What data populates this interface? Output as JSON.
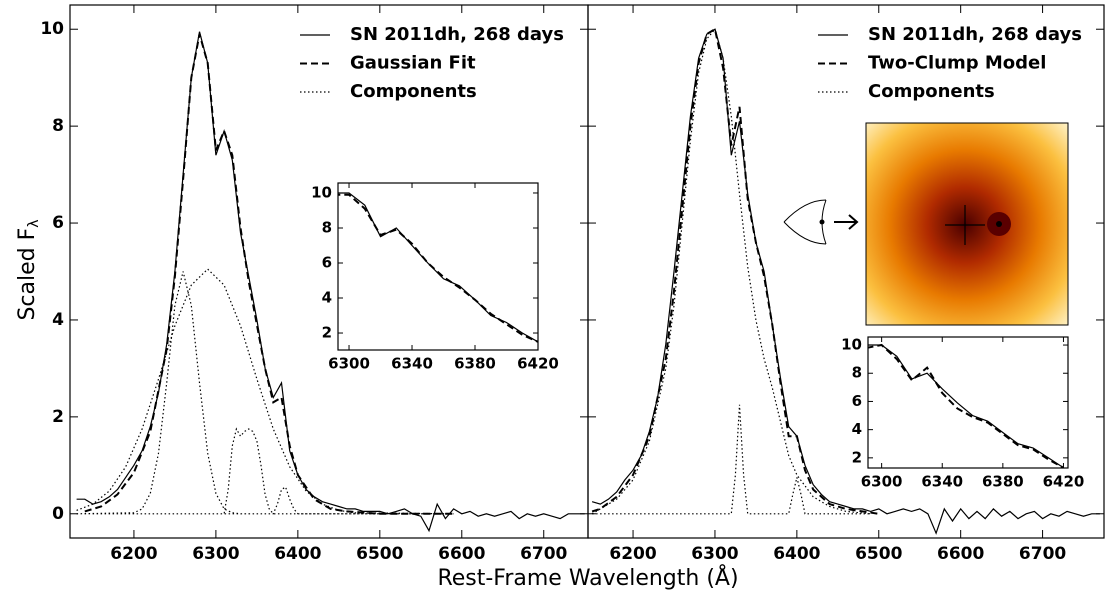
{
  "chart_data": [
    {
      "type": "line",
      "ylabel": "Scaled F",
      "ylabel_sub": "λ",
      "xlabel": "Rest-Frame Wavelength (Å)",
      "xlim": [
        6122,
        6754
      ],
      "ylim": [
        -0.5,
        10.5
      ],
      "xticks": [
        6200,
        6300,
        6400,
        6500,
        6600,
        6700
      ],
      "yticks": [
        0,
        2,
        4,
        6,
        8,
        10
      ],
      "legend": "upper right",
      "series": [
        {
          "name": "SN 2011dh, 268 days",
          "color": "#000000",
          "linestyle": "solid",
          "x": [
            6130,
            6140,
            6150,
            6160,
            6170,
            6180,
            6190,
            6200,
            6210,
            6220,
            6230,
            6240,
            6250,
            6260,
            6270,
            6280,
            6290,
            6300,
            6310,
            6320,
            6330,
            6340,
            6350,
            6360,
            6370,
            6380,
            6390,
            6400,
            6410,
            6420,
            6430,
            6440,
            6450,
            6460,
            6470,
            6480,
            6490,
            6500,
            6510,
            6520,
            6530,
            6540,
            6550,
            6560,
            6570,
            6580,
            6590,
            6600,
            6610,
            6620,
            6630,
            6640,
            6650,
            6660,
            6670,
            6680,
            6690,
            6700,
            6710,
            6720,
            6730,
            6740,
            6750
          ],
          "values": [
            0.3,
            0.3,
            0.2,
            0.25,
            0.35,
            0.5,
            0.75,
            1.0,
            1.3,
            1.8,
            2.5,
            3.5,
            5.0,
            7.0,
            9.0,
            9.95,
            9.3,
            7.4,
            7.9,
            7.3,
            5.8,
            4.9,
            4.0,
            3.0,
            2.4,
            2.7,
            1.3,
            0.8,
            0.5,
            0.35,
            0.25,
            0.2,
            0.15,
            0.1,
            0.1,
            0.05,
            0.05,
            0.05,
            0.0,
            0.05,
            0.1,
            0.0,
            -0.05,
            -0.35,
            0.2,
            -0.1,
            0.1,
            0.0,
            0.05,
            -0.05,
            0.0,
            -0.05,
            0.0,
            0.05,
            -0.1,
            0.0,
            -0.05,
            0.0,
            -0.05,
            -0.1,
            0.0,
            0.0,
            0.0
          ]
        },
        {
          "name": "Gaussian Fit",
          "color": "#000000",
          "linestyle": "dashed",
          "x": [
            6140,
            6160,
            6180,
            6200,
            6220,
            6240,
            6250,
            6260,
            6270,
            6280,
            6290,
            6300,
            6310,
            6320,
            6330,
            6340,
            6350,
            6360,
            6370,
            6380,
            6390,
            6400,
            6420,
            6440,
            6460,
            6500,
            6590
          ],
          "values": [
            0.05,
            0.15,
            0.4,
            0.85,
            1.7,
            3.4,
            4.9,
            6.9,
            9.0,
            9.9,
            9.3,
            7.5,
            7.9,
            7.4,
            5.9,
            4.8,
            3.9,
            3.0,
            2.3,
            2.4,
            1.4,
            0.8,
            0.3,
            0.1,
            0.05,
            0.0,
            0.0
          ]
        },
        {
          "name": "Components",
          "color": "#000000",
          "linestyle": "dotted",
          "x": [
            6130,
            6200,
            6210,
            6220,
            6230,
            6240,
            6250,
            6260,
            6270,
            6280,
            6290,
            6300,
            6310,
            6320,
            6330,
            6340,
            null,
            6130,
            6150,
            6170,
            6190,
            6210,
            6230,
            6250,
            6270,
            6290,
            6310,
            6330,
            6350,
            6370,
            6390,
            6410,
            6430,
            6450,
            6470,
            6590,
            null,
            6130,
            6310,
            6315,
            6320,
            6325,
            6330,
            6335,
            6340,
            6345,
            6350,
            6355,
            6360,
            6365,
            6370,
            6590,
            null,
            6130,
            6370,
            6375,
            6380,
            6385,
            6390,
            6395,
            6400,
            6590
          ],
          "values": [
            0.0,
            0.02,
            0.1,
            0.42,
            1.25,
            2.7,
            4.3,
            5.0,
            4.3,
            2.7,
            1.25,
            0.42,
            0.1,
            0.02,
            0.0,
            0.0,
            null,
            0.07,
            0.2,
            0.47,
            0.97,
            1.75,
            2.78,
            3.88,
            4.72,
            5.05,
            4.72,
            3.88,
            2.78,
            1.75,
            0.97,
            0.47,
            0.2,
            0.07,
            0.02,
            0.0,
            null,
            0.0,
            0.0,
            0.5,
            1.4,
            1.75,
            1.6,
            1.7,
            1.75,
            1.7,
            1.5,
            1.0,
            0.4,
            0.1,
            0.0,
            0.0,
            null,
            0.0,
            0.0,
            0.2,
            0.5,
            0.55,
            0.3,
            0.1,
            0.0,
            0.0
          ]
        }
      ]
    },
    {
      "type": "line",
      "xlim": [
        6145,
        6775
      ],
      "ylim": [
        -0.5,
        10.5
      ],
      "xticks": [
        6200,
        6300,
        6400,
        6500,
        6600,
        6700
      ],
      "yticks": [
        0,
        2,
        4,
        6,
        8,
        10
      ],
      "legend": "upper right",
      "series": [
        {
          "name": "SN 2011dh, 268 days",
          "color": "#000000",
          "linestyle": "solid",
          "x": [
            6150,
            6160,
            6170,
            6180,
            6190,
            6200,
            6210,
            6220,
            6230,
            6240,
            6250,
            6260,
            6270,
            6280,
            6290,
            6300,
            6310,
            6320,
            6330,
            6340,
            6350,
            6360,
            6370,
            6380,
            6390,
            6400,
            6410,
            6420,
            6430,
            6440,
            6450,
            6460,
            6470,
            6480,
            6490,
            6500,
            6510,
            6520,
            6530,
            6540,
            6550,
            6560,
            6570,
            6580,
            6590,
            6600,
            6610,
            6620,
            6630,
            6640,
            6650,
            6660,
            6670,
            6680,
            6690,
            6700,
            6710,
            6720,
            6730,
            6740,
            6750,
            6760,
            6770
          ],
          "values": [
            0.25,
            0.2,
            0.3,
            0.45,
            0.7,
            0.9,
            1.2,
            1.7,
            2.4,
            3.5,
            5.0,
            6.6,
            8.2,
            9.4,
            9.9,
            10.0,
            9.4,
            7.4,
            8.1,
            6.6,
            5.6,
            5.0,
            3.9,
            2.8,
            1.8,
            1.6,
            1.0,
            0.6,
            0.4,
            0.25,
            0.2,
            0.15,
            0.1,
            0.1,
            0.05,
            0.1,
            0.0,
            0.05,
            0.1,
            0.05,
            0.1,
            0.0,
            -0.4,
            0.1,
            -0.15,
            0.1,
            -0.1,
            0.05,
            -0.1,
            0.1,
            -0.05,
            0.05,
            -0.1,
            0.0,
            0.05,
            -0.1,
            0.0,
            -0.05,
            0.05,
            0.0,
            -0.05,
            0.0,
            0.0
          ]
        },
        {
          "name": "Two-Clump Model",
          "color": "#000000",
          "linestyle": "dashed",
          "x": [
            6150,
            6160,
            6180,
            6200,
            6220,
            6240,
            6250,
            6260,
            6270,
            6280,
            6290,
            6300,
            6310,
            6320,
            6330,
            6340,
            6350,
            6360,
            6370,
            6380,
            6390,
            6400,
            6410,
            6420,
            6440,
            6460,
            6480,
            6500
          ],
          "values": [
            0.05,
            0.1,
            0.35,
            0.8,
            1.6,
            3.2,
            4.6,
            6.3,
            8.0,
            9.3,
            9.9,
            10.0,
            9.2,
            7.6,
            8.4,
            6.5,
            5.6,
            4.9,
            3.9,
            2.7,
            1.6,
            1.6,
            0.9,
            0.5,
            0.2,
            0.1,
            0.05,
            0.0
          ]
        },
        {
          "name": "Components",
          "color": "#000000",
          "linestyle": "dotted",
          "x": [
            6150,
            6160,
            6180,
            6200,
            6220,
            6240,
            6250,
            6260,
            6270,
            6280,
            6290,
            6300,
            6310,
            6320,
            6330,
            6340,
            6350,
            6360,
            6370,
            6380,
            6390,
            6400,
            6420,
            6440,
            6460,
            6490,
            null,
            6150,
            6320,
            6325,
            6330,
            6335,
            6340,
            6390,
            6395,
            6400,
            6405,
            6410,
            6490
          ],
          "values": [
            0.0,
            0.1,
            0.3,
            0.7,
            1.5,
            3.0,
            4.3,
            6.0,
            7.7,
            9.1,
            9.8,
            10.0,
            9.4,
            8.2,
            6.6,
            5.1,
            4.0,
            3.2,
            2.6,
            1.9,
            1.2,
            0.8,
            0.35,
            0.15,
            0.05,
            0.0,
            null,
            0.0,
            0.0,
            0.8,
            2.25,
            0.8,
            0.0,
            0.0,
            0.4,
            0.75,
            0.4,
            0.0,
            0.0
          ]
        }
      ]
    },
    {
      "type": "line",
      "xlim": [
        6293,
        6420
      ],
      "ylim": [
        1.03,
        10.57
      ],
      "xticks": [
        6300,
        6340,
        6380,
        6420
      ],
      "yticks": [
        2,
        4,
        6,
        8,
        10
      ],
      "series": [
        {
          "color": "#000000",
          "linestyle": "solid",
          "x": [
            6290,
            6300,
            6310,
            6320,
            6330,
            6340,
            6350,
            6360,
            6370,
            6380,
            6390,
            6400,
            6410,
            6420
          ],
          "values": [
            10.0,
            10.0,
            9.3,
            7.5,
            8.0,
            7.0,
            6.0,
            5.1,
            4.7,
            3.9,
            3.0,
            2.6,
            2.0,
            1.5
          ]
        },
        {
          "color": "#000000",
          "linestyle": "dashed",
          "x": [
            6290,
            6300,
            6310,
            6320,
            6330,
            6340,
            6350,
            6360,
            6370,
            6380,
            6390,
            6400,
            6410,
            6420
          ],
          "values": [
            9.9,
            9.9,
            9.1,
            7.6,
            7.9,
            7.1,
            6.0,
            5.2,
            4.6,
            3.9,
            3.1,
            2.5,
            1.9,
            1.5
          ]
        }
      ]
    },
    {
      "type": "line",
      "xlim": [
        6291,
        6423
      ],
      "ylim": [
        1.28,
        10.57
      ],
      "xticks": [
        6300,
        6340,
        6380,
        6420
      ],
      "yticks": [
        2,
        4,
        6,
        8,
        10
      ],
      "series": [
        {
          "color": "#000000",
          "linestyle": "solid",
          "x": [
            6290,
            6300,
            6310,
            6320,
            6330,
            6340,
            6350,
            6360,
            6370,
            6380,
            6390,
            6400,
            6410,
            6420
          ],
          "values": [
            10.0,
            10.0,
            9.2,
            7.6,
            8.0,
            6.9,
            5.9,
            5.0,
            4.6,
            3.8,
            3.0,
            2.7,
            2.0,
            1.3
          ]
        },
        {
          "color": "#000000",
          "linestyle": "dashed",
          "x": [
            6290,
            6300,
            6310,
            6320,
            6330,
            6340,
            6350,
            6360,
            6370,
            6380,
            6390,
            6400,
            6410,
            6420
          ],
          "values": [
            9.8,
            10.0,
            9.0,
            7.5,
            8.4,
            6.6,
            5.5,
            4.9,
            4.5,
            3.7,
            2.9,
            2.6,
            1.9,
            1.3
          ]
        }
      ]
    }
  ]
}
